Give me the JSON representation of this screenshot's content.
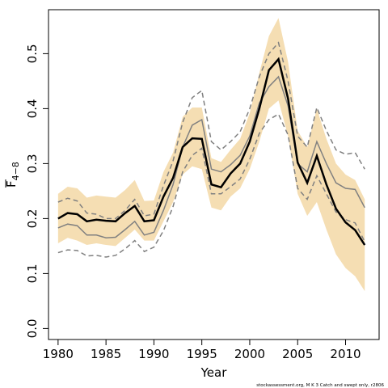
{
  "chart_data": {
    "type": "line",
    "xlabel": "Year",
    "ylabel_main": "F",
    "ylabel_sub": "4−8",
    "footnote": "stockassessment.org, M K 3 Catch and swept only, r2806",
    "xlim": [
      1979,
      2013.5
    ],
    "ylim": [
      -0.02,
      0.58
    ],
    "x_ticks": [
      1980,
      1985,
      1990,
      1995,
      2000,
      2005,
      2010
    ],
    "y_ticks": [
      0.0,
      0.1,
      0.2,
      0.3,
      0.4,
      0.5
    ],
    "y_tick_labels": [
      "0.0",
      "0.1",
      "0.2",
      "0.3",
      "0.4",
      "0.5"
    ],
    "colors": {
      "band": "#f5deb3",
      "main_line": "#000000",
      "comparison_line": "#808080"
    },
    "x": [
      1980,
      1981,
      1982,
      1983,
      1984,
      1985,
      1986,
      1987,
      1988,
      1989,
      1990,
      1991,
      1992,
      1993,
      1994,
      1995,
      1996,
      1997,
      1998,
      1999,
      2000,
      2001,
      2002,
      2003,
      2004,
      2005,
      2006,
      2007,
      2008,
      2009,
      2010,
      2011,
      2012
    ],
    "series": [
      {
        "role": "estimate",
        "style": "solid-black-thick",
        "values": [
          0.2,
          0.21,
          0.208,
          0.195,
          0.198,
          0.196,
          0.195,
          0.21,
          0.223,
          0.195,
          0.197,
          0.24,
          0.274,
          0.33,
          0.346,
          0.345,
          0.262,
          0.257,
          0.282,
          0.3,
          0.34,
          0.4,
          0.47,
          0.49,
          0.418,
          0.302,
          0.265,
          0.314,
          0.262,
          0.218,
          0.193,
          0.179,
          0.152
        ]
      },
      {
        "role": "ci-lower",
        "style": "band",
        "values": [
          0.155,
          0.165,
          0.16,
          0.152,
          0.155,
          0.152,
          0.15,
          0.165,
          0.18,
          0.16,
          0.16,
          0.195,
          0.23,
          0.28,
          0.295,
          0.29,
          0.22,
          0.215,
          0.24,
          0.255,
          0.29,
          0.34,
          0.4,
          0.415,
          0.35,
          0.245,
          0.205,
          0.23,
          0.18,
          0.135,
          0.11,
          0.095,
          0.068
        ]
      },
      {
        "role": "ci-upper",
        "style": "band",
        "values": [
          0.245,
          0.258,
          0.255,
          0.238,
          0.242,
          0.24,
          0.238,
          0.252,
          0.27,
          0.232,
          0.233,
          0.285,
          0.32,
          0.385,
          0.402,
          0.402,
          0.31,
          0.303,
          0.325,
          0.345,
          0.392,
          0.465,
          0.532,
          0.565,
          0.485,
          0.36,
          0.33,
          0.4,
          0.345,
          0.3,
          0.28,
          0.27,
          0.235
        ]
      },
      {
        "role": "comparison",
        "style": "solid-grey",
        "values": [
          0.183,
          0.19,
          0.187,
          0.17,
          0.17,
          0.165,
          0.166,
          0.18,
          0.195,
          0.17,
          0.175,
          0.215,
          0.262,
          0.33,
          0.37,
          0.38,
          0.29,
          0.285,
          0.298,
          0.315,
          0.35,
          0.41,
          0.44,
          0.458,
          0.405,
          0.3,
          0.285,
          0.34,
          0.3,
          0.265,
          0.255,
          0.253,
          0.22
        ]
      },
      {
        "role": "comparison-upper",
        "style": "dashed-grey",
        "values": [
          0.23,
          0.237,
          0.232,
          0.21,
          0.208,
          0.2,
          0.2,
          0.215,
          0.235,
          0.205,
          0.208,
          0.26,
          0.305,
          0.375,
          0.42,
          0.433,
          0.34,
          0.325,
          0.34,
          0.358,
          0.4,
          0.458,
          0.5,
          0.52,
          0.45,
          0.35,
          0.33,
          0.402,
          0.36,
          0.325,
          0.317,
          0.32,
          0.29
        ]
      },
      {
        "role": "comparison-lower",
        "style": "dashed-grey",
        "values": [
          0.138,
          0.143,
          0.142,
          0.132,
          0.133,
          0.13,
          0.133,
          0.145,
          0.16,
          0.14,
          0.148,
          0.178,
          0.222,
          0.285,
          0.315,
          0.328,
          0.245,
          0.245,
          0.258,
          0.272,
          0.308,
          0.355,
          0.38,
          0.39,
          0.352,
          0.255,
          0.235,
          0.278,
          0.245,
          0.212,
          0.198,
          0.192,
          0.158
        ]
      }
    ]
  }
}
